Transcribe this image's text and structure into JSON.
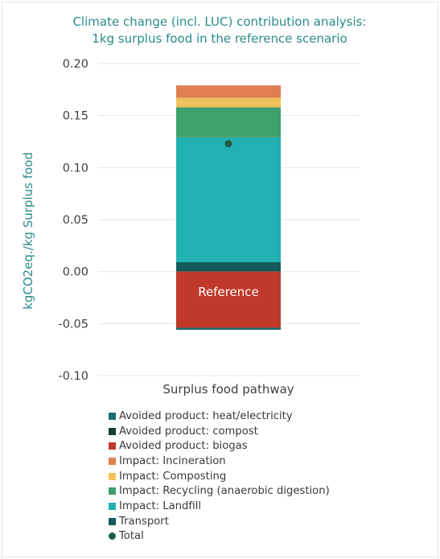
{
  "chart_data": {
    "type": "bar",
    "stacked": true,
    "title": [
      "Climate change (incl. LUC) contribution analysis:",
      "1kg surplus food in the reference scenario"
    ],
    "ylabel": "kgCO2eq./kg Surplus food",
    "xlabel": "Surplus food pathway",
    "categories": [
      "Reference"
    ],
    "ylim": [
      -0.1,
      0.2
    ],
    "yticks": [
      0.2,
      0.15,
      0.1,
      0.05,
      0.0,
      -0.05,
      -0.1
    ],
    "ytick_labels": [
      "0.20",
      "0.15",
      "0.10",
      "0.05",
      "0.00",
      "-0.05",
      "-0.10"
    ],
    "grid": true,
    "legend_position": "bottom",
    "series": [
      {
        "name": "Avoided product: heat/electricity",
        "values": [
          -0.002
        ],
        "color": "#1a6e70"
      },
      {
        "name": "Avoided product: compost",
        "values": [
          0.0
        ],
        "color": "#0f3e36"
      },
      {
        "name": "Avoided product: biogas",
        "values": [
          -0.054
        ],
        "color": "#c0392b"
      },
      {
        "name": "Impact: Incineration",
        "values": [
          0.012
        ],
        "color": "#df7f52"
      },
      {
        "name": "Impact: Composting",
        "values": [
          0.009
        ],
        "color": "#eec15a"
      },
      {
        "name": "Impact: Recycling (anaerobic digestion)",
        "values": [
          0.029
        ],
        "color": "#3ea06a"
      },
      {
        "name": "Impact: Landfill",
        "values": [
          0.12
        ],
        "color": "#22b0b2"
      },
      {
        "name": "Transport",
        "values": [
          0.009
        ],
        "color": "#155a5a"
      }
    ],
    "total": {
      "name": "Total",
      "values": [
        0.123
      ],
      "color": "#1f5e44"
    }
  }
}
